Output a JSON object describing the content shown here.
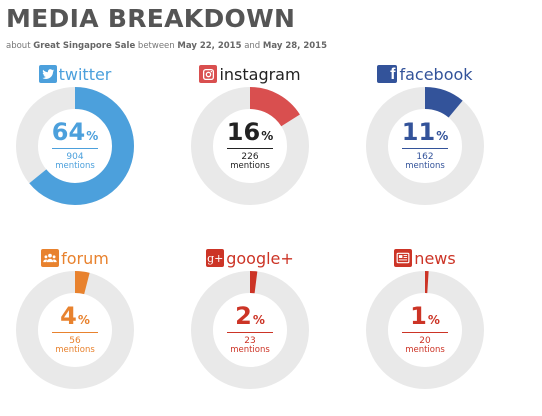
{
  "header": {
    "title": "MEDIA BREAKDOWN",
    "sub_about": "about",
    "sub_topic": "Great Singapore Sale",
    "sub_between": "between",
    "sub_start": "May 22, 2015",
    "sub_and": "and",
    "sub_end": "May 28, 2015"
  },
  "chart_data": {
    "type": "pie",
    "title": "MEDIA BREAKDOWN",
    "categories": [
      "twitter",
      "instagram",
      "facebook",
      "forum",
      "google+",
      "news"
    ],
    "values": [
      64,
      16,
      11,
      4,
      2,
      1
    ],
    "unit": "%",
    "mentions": [
      904,
      226,
      162,
      56,
      23,
      20
    ],
    "mentions_label": "mentions",
    "track_color": "#e9e9e9",
    "colors": [
      "#4ca0dc",
      "#d94f4f",
      "#33539a",
      "#e8822e",
      "#cc3426",
      "#cc3426"
    ],
    "text_colors": [
      "#4ca0dc",
      "#222222",
      "#33539a",
      "#e8822e",
      "#cc3426",
      "#cc3426"
    ],
    "icons": [
      "twitter-bird-icon",
      "instagram-camera-icon",
      "facebook-f-icon",
      "forum-people-icon",
      "google-plus-icon",
      "newspaper-icon"
    ]
  }
}
